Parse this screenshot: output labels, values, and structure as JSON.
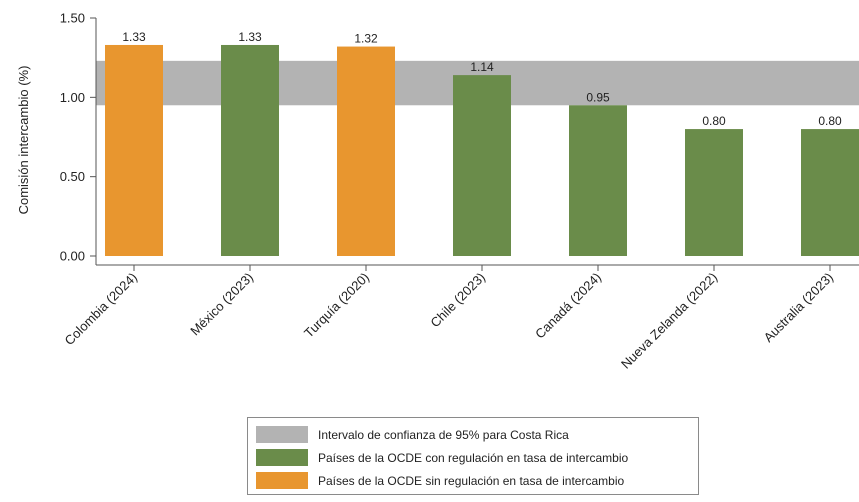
{
  "chart_data": {
    "type": "bar",
    "title": "",
    "xlabel": "",
    "ylabel": "Comisión intercambio (%)",
    "ylim": [
      0,
      1.5
    ],
    "yticks": [
      "0.00",
      "0.50",
      "1.00",
      "1.50"
    ],
    "ytick_values": [
      0,
      0.5,
      1.0,
      1.5
    ],
    "categories": [
      "Colombia (2024)",
      "México (2023)",
      "Turquía (2020)",
      "Chile (2023)",
      "Canadá (2024)",
      "Nueva Zelanda (2022)",
      "Australia (2023)"
    ],
    "values": [
      1.33,
      1.33,
      1.32,
      1.14,
      0.95,
      0.8,
      0.8
    ],
    "value_labels": [
      "1.33",
      "1.33",
      "1.32",
      "1.14",
      "0.95",
      "0.80",
      "0.80"
    ],
    "groups": [
      "sin",
      "con",
      "sin",
      "con",
      "con",
      "con",
      "con"
    ],
    "band": {
      "low": 0.95,
      "high": 1.23,
      "color": "#b3b3b3"
    },
    "colors": {
      "con": "#6a8c4a",
      "sin": "#e8962f",
      "band": "#b3b3b3"
    },
    "grid": false,
    "legend_position": "bottom",
    "legend": [
      {
        "label": "Intervalo de confianza de 95% para Costa Rica",
        "color": "#b3b3b3"
      },
      {
        "label": "Países de la OCDE con regulación en tasa de intercambio",
        "color": "#6a8c4a"
      },
      {
        "label": "Países de la OCDE sin regulación en tasa de intercambio",
        "color": "#e8962f"
      }
    ]
  }
}
